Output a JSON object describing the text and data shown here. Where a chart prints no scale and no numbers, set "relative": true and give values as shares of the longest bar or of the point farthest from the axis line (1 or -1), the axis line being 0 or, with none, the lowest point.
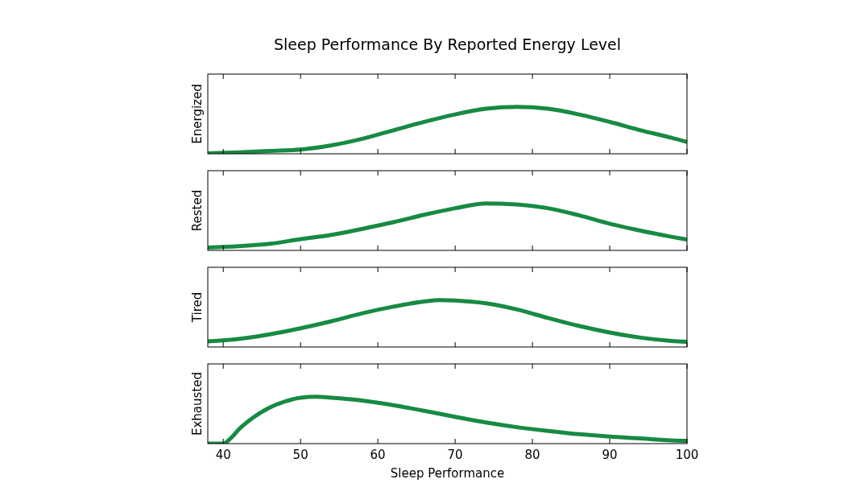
{
  "chart_data": [
    {
      "type": "line",
      "title": "Sleep Performance By Reported Energy Level",
      "ylabel": "Energized",
      "relative": true,
      "xlim": [
        38,
        100
      ],
      "xticks": [
        40,
        50,
        60,
        70,
        80,
        90,
        100
      ],
      "tick_labels": false,
      "line_style": "solid",
      "series": [
        {
          "color": "#178a43",
          "x": [
            38,
            42,
            46,
            50,
            54,
            58,
            62,
            66,
            70,
            74,
            78,
            82,
            86,
            90,
            94,
            98,
            100
          ],
          "values": [
            0.01,
            0.03,
            0.06,
            0.09,
            0.18,
            0.32,
            0.5,
            0.68,
            0.84,
            0.96,
            1,
            0.96,
            0.84,
            0.68,
            0.5,
            0.34,
            0.25
          ]
        }
      ]
    },
    {
      "type": "line",
      "ylabel": "Rested",
      "relative": true,
      "xlim": [
        38,
        100
      ],
      "xticks": [
        40,
        50,
        60,
        70,
        80,
        90,
        100
      ],
      "tick_labels": false,
      "line_style": "solid",
      "series": [
        {
          "color": "#178a43",
          "x": [
            38,
            42,
            46,
            50,
            54,
            58,
            62,
            66,
            70,
            74,
            78,
            82,
            86,
            90,
            94,
            98,
            100
          ],
          "values": [
            0.06,
            0.09,
            0.14,
            0.24,
            0.33,
            0.46,
            0.6,
            0.76,
            0.9,
            1,
            0.98,
            0.9,
            0.75,
            0.57,
            0.42,
            0.29,
            0.23
          ]
        }
      ]
    },
    {
      "type": "line",
      "ylabel": "Tired",
      "relative": true,
      "xlim": [
        38,
        100
      ],
      "xticks": [
        40,
        50,
        60,
        70,
        80,
        90,
        100
      ],
      "tick_labels": false,
      "line_style": "solid",
      "series": [
        {
          "color": "#178a43",
          "x": [
            38,
            42,
            46,
            50,
            54,
            58,
            62,
            66,
            68,
            70,
            74,
            78,
            82,
            86,
            90,
            94,
            98,
            100
          ],
          "values": [
            0.12,
            0.17,
            0.27,
            0.4,
            0.55,
            0.72,
            0.86,
            0.97,
            1,
            0.99,
            0.93,
            0.8,
            0.62,
            0.45,
            0.31,
            0.2,
            0.13,
            0.11
          ]
        }
      ]
    },
    {
      "type": "line",
      "ylabel": "Exhausted",
      "xlabel": "Sleep Performance",
      "relative": true,
      "xlim": [
        38,
        100
      ],
      "xticks": [
        40,
        50,
        60,
        70,
        80,
        90,
        100
      ],
      "tick_labels": "x",
      "line_style": "solid",
      "series": [
        {
          "color": "#178a43",
          "x": [
            38,
            40,
            41,
            42,
            44,
            46,
            48,
            50,
            52,
            54,
            58,
            62,
            66,
            70,
            74,
            78,
            82,
            86,
            90,
            94,
            98,
            100
          ],
          "values": [
            0,
            0,
            0.12,
            0.3,
            0.57,
            0.77,
            0.9,
            0.98,
            1,
            0.98,
            0.92,
            0.82,
            0.7,
            0.57,
            0.45,
            0.35,
            0.27,
            0.2,
            0.15,
            0.11,
            0.07,
            0.06
          ]
        }
      ]
    }
  ]
}
